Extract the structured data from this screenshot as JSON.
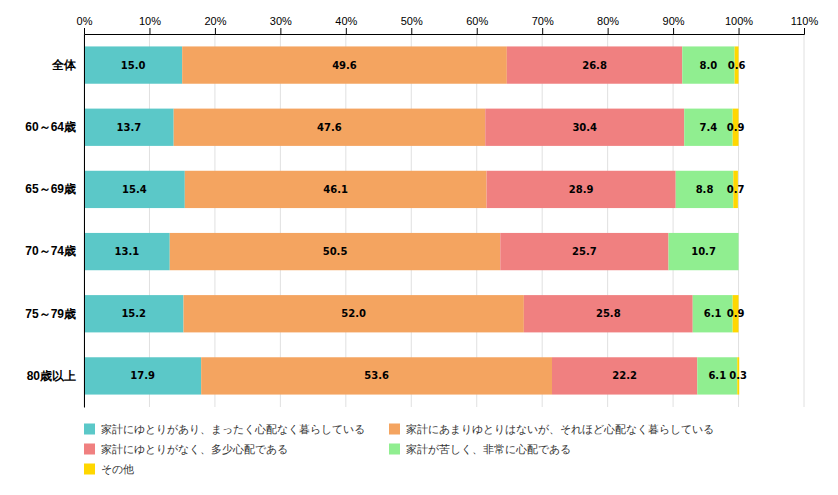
{
  "chart_data": {
    "type": "bar",
    "orientation": "horizontal",
    "stacked": true,
    "grid": true,
    "data_labels": true,
    "categories": [
      "全体",
      "60～64歳",
      "65～69歳",
      "70～74歳",
      "75～79歳",
      "80歳以上"
    ],
    "series": [
      {
        "name": "家計にゆとりがあり、まったく心配なく暮らしている",
        "color": "#5BC8C8",
        "values": [
          15.0,
          13.7,
          15.4,
          13.1,
          15.2,
          17.9
        ],
        "value_labels": [
          "15.0",
          "13.7",
          "15.4",
          "13.1",
          "15.2",
          "17.9"
        ]
      },
      {
        "name": "家計にあまりゆとりはないが、それほど心配なく暮らしている",
        "color": "#F4A460",
        "values": [
          49.6,
          47.6,
          46.1,
          50.5,
          52.0,
          53.6
        ],
        "value_labels": [
          "49.6",
          "47.6",
          "46.1",
          "50.5",
          "52.0",
          "53.6"
        ]
      },
      {
        "name": "家計にゆとりがなく、多少心配である",
        "color": "#F08080",
        "values": [
          26.8,
          30.4,
          28.9,
          25.7,
          25.8,
          22.2
        ],
        "value_labels": [
          "26.8",
          "30.4",
          "28.9",
          "25.7",
          "25.8",
          "22.2"
        ]
      },
      {
        "name": "家計が苦しく、非常に心配である",
        "color": "#90EE90",
        "values": [
          8.0,
          7.4,
          8.8,
          10.7,
          6.1,
          6.1
        ],
        "value_labels": [
          "8.0",
          "7.4",
          "8.8",
          "10.7",
          "6.1",
          "6.1"
        ]
      },
      {
        "name": "その他",
        "color": "#FFD700",
        "values": [
          0.6,
          0.9,
          0.7,
          0.0,
          0.9,
          0.3
        ],
        "value_labels": [
          "0.6",
          "0.9",
          "0.7",
          null,
          "0.9",
          "0.3"
        ]
      }
    ],
    "xlim": [
      0,
      110
    ],
    "xticks": [
      {
        "value": 0,
        "label": "0%"
      },
      {
        "value": 10,
        "label": "10%"
      },
      {
        "value": 20,
        "label": "20%"
      },
      {
        "value": 30,
        "label": "30%"
      },
      {
        "value": 40,
        "label": "40%"
      },
      {
        "value": 50,
        "label": "50%"
      },
      {
        "value": 60,
        "label": "60%"
      },
      {
        "value": 70,
        "label": "70%"
      },
      {
        "value": 80,
        "label": "80%"
      },
      {
        "value": 90,
        "label": "90%"
      },
      {
        "value": 100,
        "label": "100%"
      },
      {
        "value": 110,
        "label": "110%"
      }
    ]
  }
}
